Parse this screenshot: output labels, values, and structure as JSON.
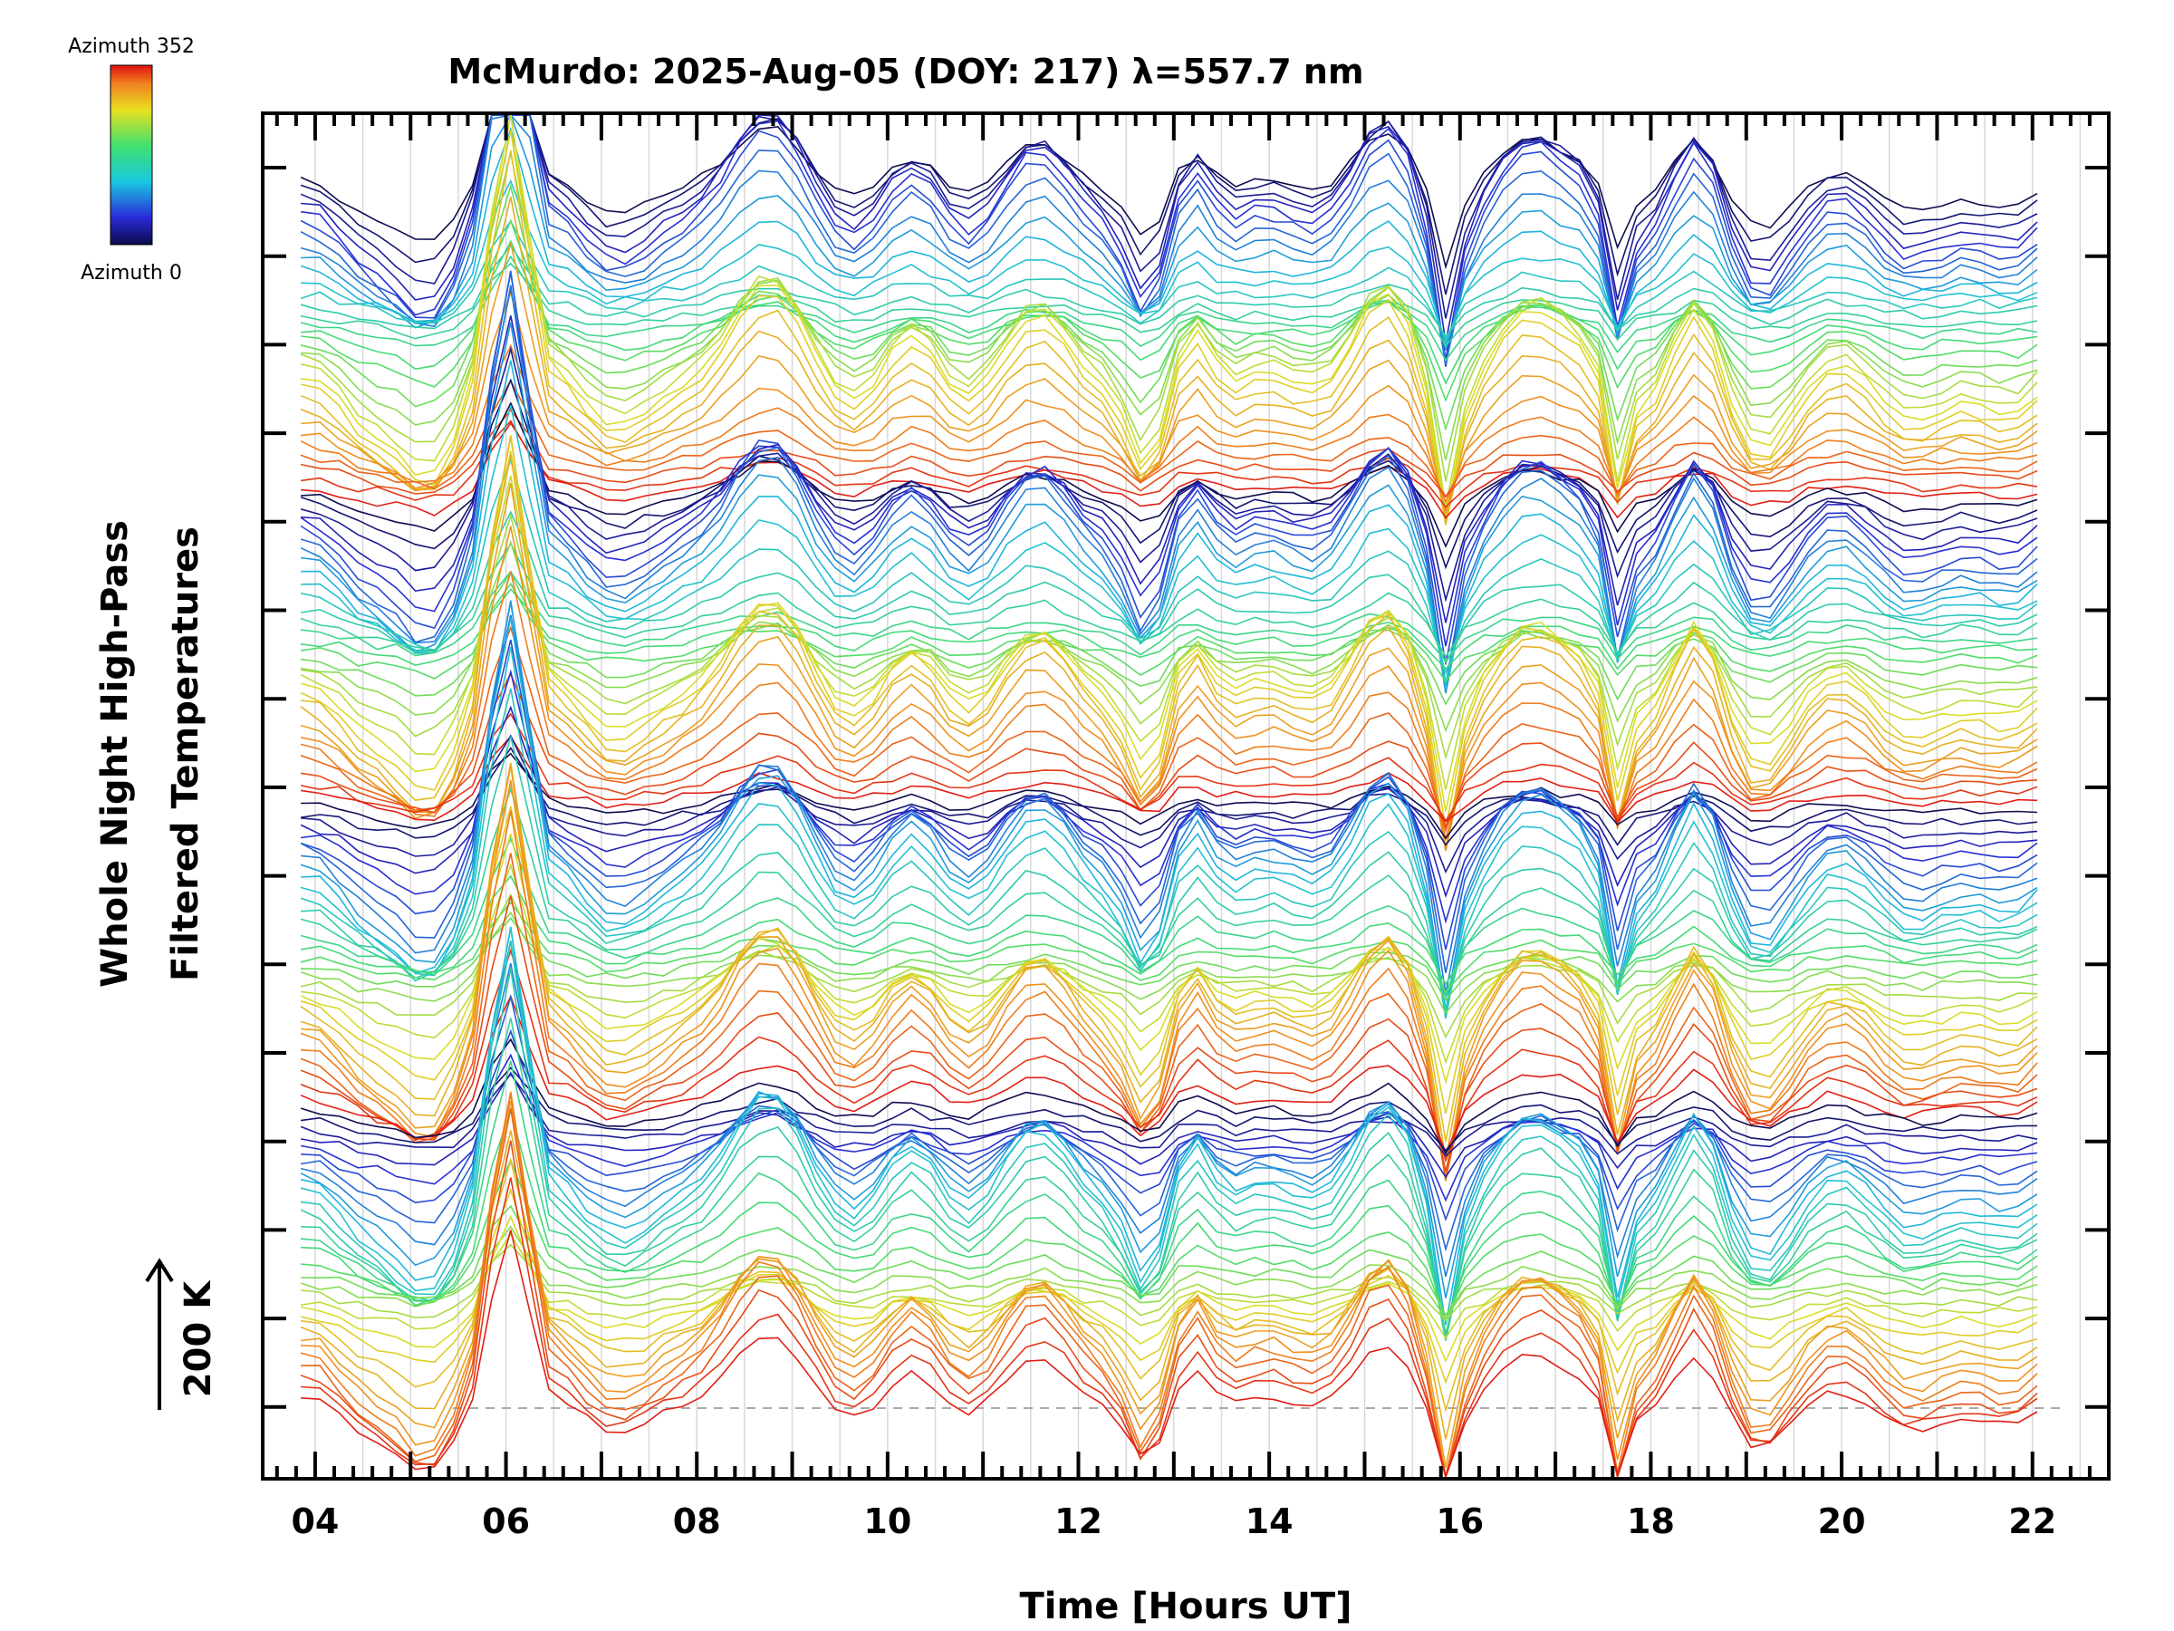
{
  "chart_data": {
    "type": "line",
    "title": "McMurdo: 2025-Aug-05 (DOY: 217) λ=557.7 nm",
    "xlabel": "Time [Hours UT]",
    "ylabel_line1": "Whole Night High-Pass",
    "ylabel_line2": "Filtered Temperatures",
    "scale_label": "200 K",
    "xlim": [
      3.45,
      22.8
    ],
    "x_ticks": [
      "04",
      "06",
      "08",
      "10",
      "12",
      "14",
      "16",
      "18",
      "20",
      "22"
    ],
    "x_tick_values": [
      4,
      6,
      8,
      10,
      12,
      14,
      16,
      18,
      20,
      22
    ],
    "time_range": [
      3.85,
      22.2
    ],
    "time_step": 0.2,
    "series_count": 128,
    "colorbar": {
      "top_label": "Azimuth 352",
      "bottom_label": "Azimuth 0",
      "colormap": "rainbow",
      "azimuth_min": 0,
      "azimuth_max": 352
    },
    "features": [
      {
        "hour": 5.95,
        "amplitude": 2.4,
        "width": 0.22,
        "type": "peak"
      },
      {
        "hour": 6.15,
        "amplitude": 1.6,
        "width": 0.15,
        "type": "peak"
      },
      {
        "hour": 5.2,
        "amplitude": -0.9,
        "width": 0.35,
        "type": "trough"
      },
      {
        "hour": 8.6,
        "amplitude": 1.0,
        "width": 0.6,
        "type": "peak"
      },
      {
        "hour": 10.3,
        "amplitude": 0.8,
        "width": 0.45,
        "type": "peak"
      },
      {
        "hour": 11.7,
        "amplitude": 0.6,
        "width": 0.5,
        "type": "peak"
      },
      {
        "hour": 12.7,
        "amplitude": -0.8,
        "width": 0.25,
        "type": "trough"
      },
      {
        "hour": 13.2,
        "amplitude": 1.1,
        "width": 0.3,
        "type": "peak"
      },
      {
        "hour": 15.3,
        "amplitude": 1.2,
        "width": 0.45,
        "type": "peak"
      },
      {
        "hour": 15.85,
        "amplitude": -1.3,
        "width": 0.15,
        "type": "trough"
      },
      {
        "hour": 16.8,
        "amplitude": 0.9,
        "width": 0.5,
        "type": "peak"
      },
      {
        "hour": 17.65,
        "amplitude": -1.3,
        "width": 0.15,
        "type": "trough"
      },
      {
        "hour": 18.45,
        "amplitude": 1.3,
        "width": 0.35,
        "type": "peak"
      },
      {
        "hour": 19.1,
        "amplitude": -0.6,
        "width": 0.4,
        "type": "trough"
      }
    ]
  }
}
